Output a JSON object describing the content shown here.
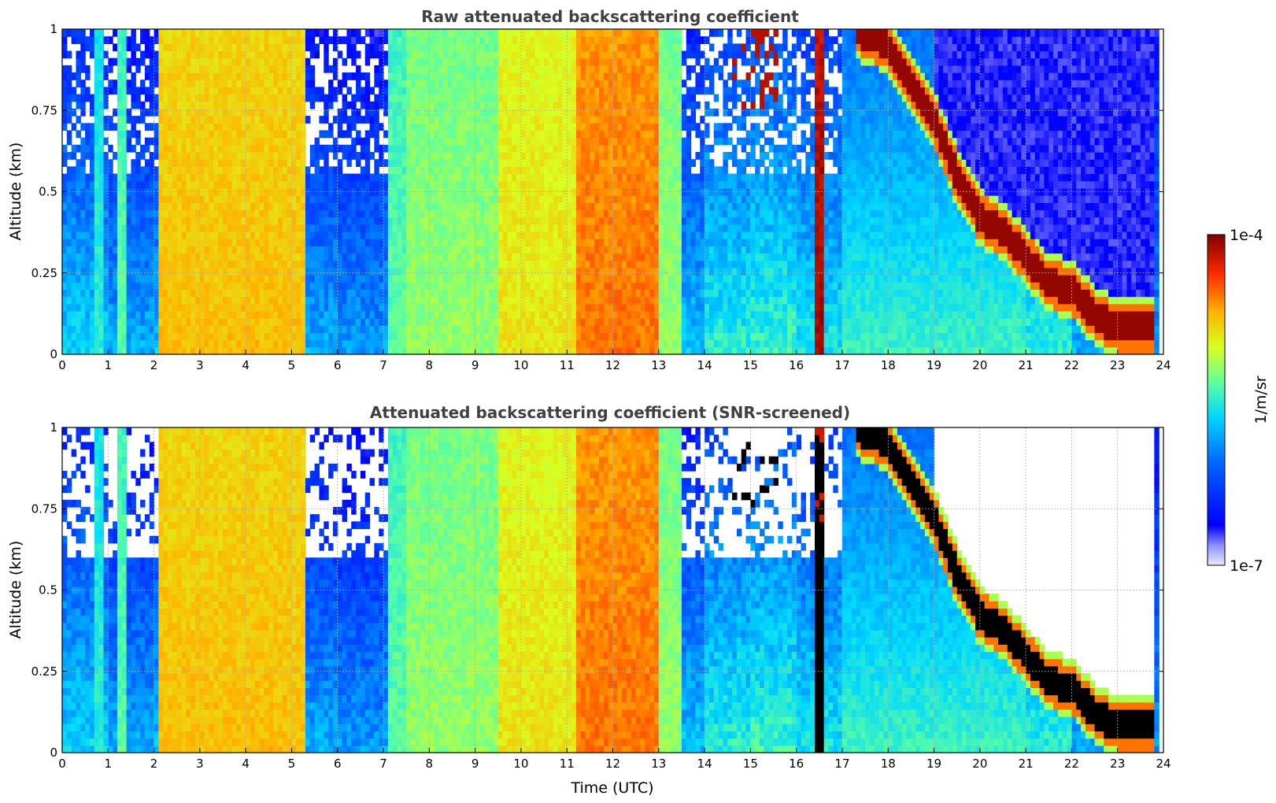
{
  "chart_data": [
    {
      "type": "heatmap",
      "title": "Raw attenuated backscattering coefficient",
      "xlabel": "",
      "ylabel": "Altitude (km)",
      "xlim": [
        0,
        24
      ],
      "ylim": [
        0,
        1
      ],
      "x_ticks": [
        "0",
        "1",
        "2",
        "3",
        "4",
        "5",
        "6",
        "7",
        "8",
        "9",
        "10",
        "11",
        "12",
        "13",
        "14",
        "15",
        "16",
        "17",
        "18",
        "19",
        "20",
        "21",
        "22",
        "23",
        "24"
      ],
      "y_ticks": [
        "0",
        "0.25",
        "0.5",
        "0.75",
        "1"
      ],
      "grid": true,
      "colormap": "jet",
      "value_scale": "log",
      "background_level": [
        0.35,
        0.3,
        0.32,
        0.4,
        0.35,
        0.3,
        0.28,
        0.3,
        0.33,
        0.3,
        0.28,
        0.3,
        0.3,
        0.33,
        0.4,
        0.42,
        0.38,
        0.35,
        0.4,
        0.45,
        0.5,
        0.4,
        0.3,
        0.28
      ],
      "bands": [
        {
          "x0": 0.7,
          "x1": 0.9,
          "level": 0.5
        },
        {
          "x0": 1.2,
          "x1": 1.4,
          "level": 0.55
        },
        {
          "x0": 2.1,
          "x1": 5.3,
          "level": 0.75
        },
        {
          "x0": 7.1,
          "x1": 7.5,
          "level": 0.55
        },
        {
          "x0": 7.5,
          "x1": 9.5,
          "level": 0.6
        },
        {
          "x0": 9.5,
          "x1": 11.2,
          "level": 0.7
        },
        {
          "x0": 11.2,
          "x1": 13.0,
          "level": 0.82
        },
        {
          "x0": 13.0,
          "x1": 13.5,
          "level": 0.6
        },
        {
          "x0": 16.45,
          "x1": 16.6,
          "level": 0.97
        }
      ],
      "cloud_layer": {
        "start_time": 17.3,
        "points": [
          [
            17.3,
            1.0
          ],
          [
            18.0,
            0.95
          ],
          [
            19.0,
            0.72
          ],
          [
            19.5,
            0.55
          ],
          [
            20.0,
            0.42
          ],
          [
            20.5,
            0.38
          ],
          [
            21.0,
            0.3
          ],
          [
            21.5,
            0.22
          ],
          [
            22.0,
            0.2
          ],
          [
            22.5,
            0.12
          ],
          [
            23.0,
            0.08
          ],
          [
            23.8,
            0.08
          ]
        ]
      }
    },
    {
      "type": "heatmap",
      "title": "Attenuated backscattering coefficient (SNR-screened)",
      "xlabel": "Time (UTC)",
      "ylabel": "Altitude (km)",
      "xlim": [
        0,
        24
      ],
      "ylim": [
        0,
        1
      ],
      "x_ticks": [
        "0",
        "1",
        "2",
        "3",
        "4",
        "5",
        "6",
        "7",
        "8",
        "9",
        "10",
        "11",
        "12",
        "13",
        "14",
        "15",
        "16",
        "17",
        "18",
        "19",
        "20",
        "21",
        "22",
        "23",
        "24"
      ],
      "y_ticks": [
        "0",
        "0.25",
        "0.5",
        "0.75",
        "1"
      ],
      "grid": true,
      "colormap": "jet",
      "value_scale": "log",
      "screened": true
    }
  ],
  "colorbar": {
    "max_label": "1e-4",
    "min_label": "1e-7",
    "label": "1/m/sr"
  }
}
